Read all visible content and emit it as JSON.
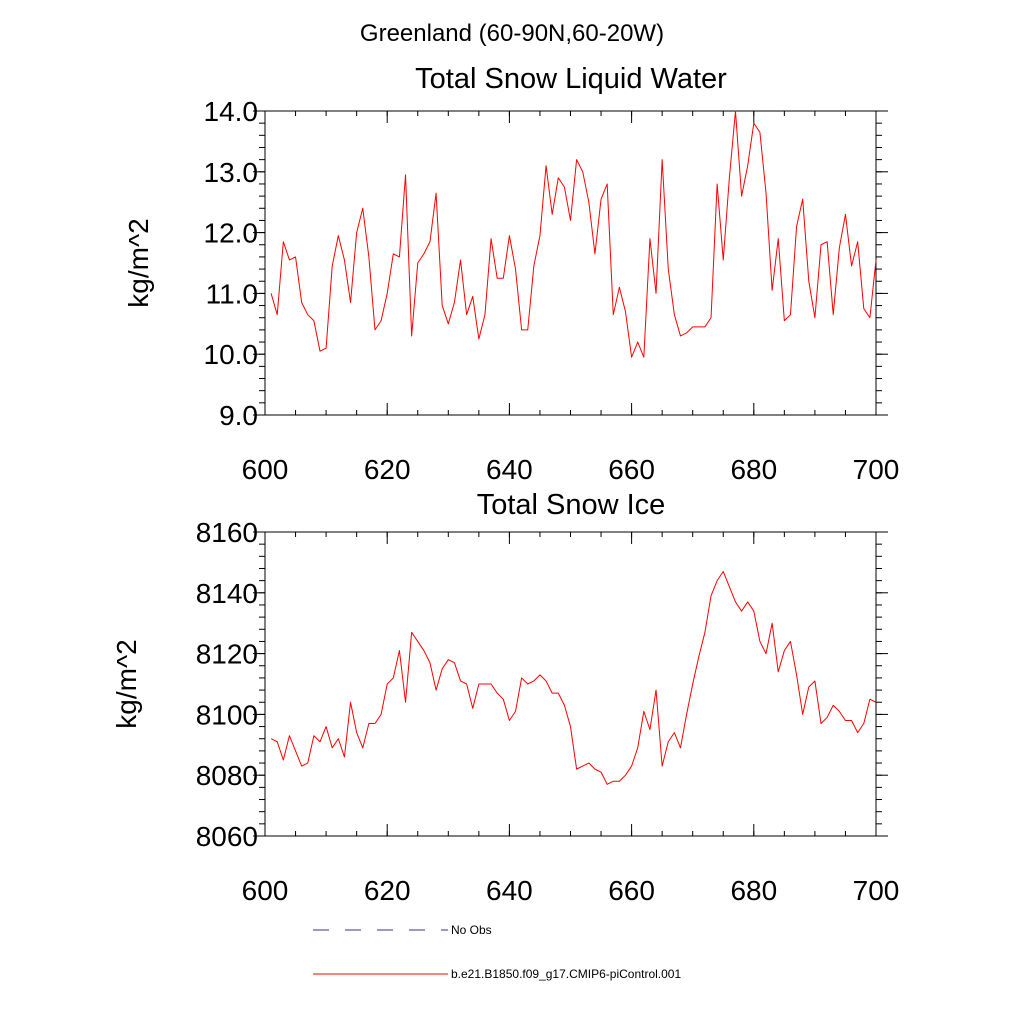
{
  "figure_title": "Greenland (60-90N,60-20W)",
  "colors": {
    "series": "#ff0000",
    "no_obs": "#2a3b8f",
    "axis": "#000000"
  },
  "legend": [
    {
      "label": "No Obs",
      "style": "dashed",
      "color": "#2a3b8f"
    },
    {
      "label": "b.e21.B1850.f09_g17.CMIP6-piControl.001",
      "style": "solid",
      "color": "#ff0000"
    }
  ],
  "chart_data": [
    {
      "type": "line",
      "title": "Total Snow Liquid Water",
      "xlabel": "",
      "ylabel": "kg/m^2",
      "xlim": [
        600,
        700
      ],
      "ylim": [
        9,
        14
      ],
      "xticks": [
        600,
        620,
        640,
        660,
        680,
        700
      ],
      "xtick_labels": [
        "600",
        "620",
        "640",
        "660",
        "680",
        "700"
      ],
      "yticks": [
        9,
        10,
        11,
        12,
        13,
        14
      ],
      "ytick_labels": [
        "9.0",
        "10.0",
        "11.0",
        "12.0",
        "13.0",
        "14.0"
      ],
      "x_minor_step": 5,
      "y_minor_step": 0.2,
      "grid": false,
      "series": [
        {
          "color": "#ff0000",
          "x_start": 601,
          "x_step": 1,
          "values": [
            11.0,
            10.65,
            11.85,
            11.55,
            11.6,
            10.85,
            10.65,
            10.55,
            10.05,
            10.1,
            11.45,
            11.95,
            11.55,
            10.85,
            12.0,
            12.4,
            11.6,
            10.4,
            10.55,
            11.0,
            11.65,
            11.6,
            12.95,
            10.3,
            11.5,
            11.65,
            11.85,
            12.65,
            10.8,
            10.5,
            10.85,
            11.55,
            10.65,
            10.95,
            10.25,
            10.65,
            11.9,
            11.25,
            11.25,
            11.95,
            11.4,
            10.4,
            10.4,
            11.45,
            11.95,
            13.1,
            12.3,
            12.9,
            12.75,
            12.2,
            13.2,
            13.0,
            12.5,
            11.65,
            12.55,
            12.8,
            10.65,
            11.1,
            10.7,
            9.95,
            10.2,
            9.95,
            11.9,
            11.0,
            13.2,
            11.4,
            10.65,
            10.3,
            10.35,
            10.45,
            10.45,
            10.45,
            10.6,
            12.8,
            11.55,
            12.9,
            14.0,
            12.6,
            13.1,
            13.8,
            13.65,
            12.65,
            11.05,
            11.9,
            10.55,
            10.65,
            12.1,
            12.55,
            11.2,
            10.6,
            11.8,
            11.85,
            10.65,
            11.75,
            12.3,
            11.45,
            11.85,
            10.75,
            10.6,
            11.55
          ]
        }
      ]
    },
    {
      "type": "line",
      "title": "Total Snow Ice",
      "xlabel": "",
      "ylabel": "kg/m^2",
      "xlim": [
        600,
        700
      ],
      "ylim": [
        8060,
        8160
      ],
      "xticks": [
        600,
        620,
        640,
        660,
        680,
        700
      ],
      "xtick_labels": [
        "600",
        "620",
        "640",
        "660",
        "680",
        "700"
      ],
      "yticks": [
        8060,
        8080,
        8100,
        8120,
        8140,
        8160
      ],
      "ytick_labels": [
        "8060",
        "8080",
        "8100",
        "8120",
        "8140",
        "8160"
      ],
      "x_minor_step": 5,
      "y_minor_step": 4,
      "grid": false,
      "series": [
        {
          "color": "#ff0000",
          "x_start": 601,
          "x_step": 1,
          "values": [
            8092,
            8091,
            8085,
            8093,
            8088,
            8083,
            8084,
            8093,
            8091,
            8096,
            8089,
            8092,
            8086,
            8104,
            8094,
            8089,
            8097,
            8097,
            8100,
            8110,
            8112,
            8121,
            8104,
            8127,
            8124,
            8121,
            8117,
            8108,
            8115,
            8118,
            8117,
            8111,
            8110,
            8102,
            8110,
            8110,
            8110,
            8107,
            8105,
            8098,
            8101,
            8112,
            8110,
            8111,
            8113,
            8111,
            8107,
            8107,
            8103,
            8096,
            8082,
            8083,
            8084,
            8082,
            8081,
            8077,
            8078,
            8078,
            8080,
            8083,
            8089,
            8101,
            8095,
            8108,
            8083,
            8091,
            8094,
            8089,
            8100,
            8110,
            8119,
            8127,
            8139,
            8144,
            8147,
            8142,
            8137,
            8134,
            8137,
            8134,
            8124,
            8120,
            8130,
            8114,
            8121,
            8124,
            8113,
            8100,
            8109,
            8111,
            8097,
            8099,
            8103,
            8101,
            8098,
            8098,
            8094,
            8097,
            8105,
            8104
          ]
        }
      ]
    }
  ]
}
